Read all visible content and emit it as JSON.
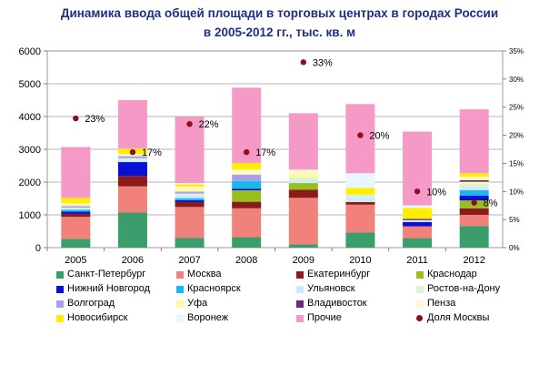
{
  "title_line1": "Динамика ввода общей площади в торговых центрах в городах России",
  "title_line2": "в 2005-2012 гг., тыс. кв. м",
  "chart_data": {
    "type": "bar",
    "stacked": true,
    "categories": [
      "2005",
      "2006",
      "2007",
      "2008",
      "2009",
      "2010",
      "2011",
      "2012"
    ],
    "ylim": [
      0,
      6000
    ],
    "y_ticks": [
      "0",
      "1000",
      "2000",
      "3000",
      "4000",
      "5000",
      "6000"
    ],
    "y2lim": [
      0,
      35
    ],
    "y2_ticks": [
      "0%",
      "5%",
      "10%",
      "15%",
      "20%",
      "25%",
      "30%",
      "35%"
    ],
    "grid": true,
    "legend_position": "bottom",
    "series": [
      {
        "name": "Санкт-Петербург",
        "color": "#3a9d6b",
        "values": [
          270,
          1070,
          300,
          320,
          100,
          460,
          290,
          660
        ]
      },
      {
        "name": "Москва",
        "color": "#f0827b",
        "values": [
          670,
          800,
          940,
          880,
          1420,
          850,
          360,
          340
        ]
      },
      {
        "name": "Екатеринбург",
        "color": "#8b1a1a",
        "values": [
          90,
          320,
          150,
          200,
          250,
          80,
          0,
          200
        ]
      },
      {
        "name": "Краснодар",
        "color": "#99bf1c",
        "values": [
          0,
          0,
          0,
          350,
          200,
          0,
          0,
          240
        ]
      },
      {
        "name": "Нижний Новгород",
        "color": "#0a0fd6",
        "values": [
          70,
          420,
          60,
          50,
          0,
          0,
          130,
          150
        ]
      },
      {
        "name": "Красноярск",
        "color": "#19b9f0",
        "values": [
          60,
          0,
          60,
          230,
          0,
          0,
          0,
          160
        ]
      },
      {
        "name": "Ульяновск",
        "color": "#cfe9fa",
        "values": [
          30,
          50,
          80,
          0,
          80,
          110,
          60,
          80
        ]
      },
      {
        "name": "Ростов-на-Дону",
        "color": "#d9f2de",
        "values": [
          30,
          70,
          60,
          0,
          80,
          120,
          0,
          120
        ]
      },
      {
        "name": "Волгоград",
        "color": "#a8a0e6",
        "values": [
          50,
          60,
          60,
          200,
          0,
          0,
          0,
          0
        ]
      },
      {
        "name": "Уфа",
        "color": "#fffba0",
        "values": [
          40,
          0,
          70,
          0,
          140,
          0,
          0,
          60
        ]
      },
      {
        "name": "Владивосток",
        "color": "#6a2a80",
        "values": [
          0,
          0,
          0,
          0,
          0,
          0,
          40,
          50
        ]
      },
      {
        "name": "Пенза",
        "color": "#fff8cf",
        "values": [
          40,
          70,
          80,
          150,
          110,
          0,
          0,
          100
        ]
      },
      {
        "name": "Новосибирск",
        "color": "#ffee00",
        "values": [
          170,
          160,
          70,
          200,
          0,
          200,
          330,
          110
        ]
      },
      {
        "name": "Воронеж",
        "color": "#e6f7ff",
        "values": [
          0,
          0,
          40,
          0,
          0,
          450,
          80,
          0
        ]
      },
      {
        "name": "Прочие",
        "color": "#f599c6",
        "values": [
          1550,
          1480,
          2020,
          2300,
          1720,
          2110,
          2250,
          1950
        ]
      }
    ],
    "line_series": {
      "name": "Доля Москвы",
      "color": "#8b0f1f",
      "axis": "secondary",
      "values": [
        23,
        17,
        22,
        17,
        33,
        20,
        10,
        8
      ],
      "labels": [
        "23%",
        "17%",
        "22%",
        "17%",
        "33%",
        "20%",
        "10%",
        "8%"
      ]
    }
  },
  "legend": [
    {
      "label": "Санкт-Петербург",
      "color": "#3a9d6b",
      "kind": "box"
    },
    {
      "label": "Москва",
      "color": "#f0827b",
      "kind": "box"
    },
    {
      "label": "Екатеринбург",
      "color": "#8b1a1a",
      "kind": "box"
    },
    {
      "label": "Краснодар",
      "color": "#99bf1c",
      "kind": "box"
    },
    {
      "label": "Нижний Новгород",
      "color": "#0a0fd6",
      "kind": "box"
    },
    {
      "label": "Красноярск",
      "color": "#19b9f0",
      "kind": "box"
    },
    {
      "label": "Ульяновск",
      "color": "#cfe9fa",
      "kind": "box"
    },
    {
      "label": "Ростов-на-Дону",
      "color": "#d9f2de",
      "kind": "box"
    },
    {
      "label": "Волгоград",
      "color": "#a8a0e6",
      "kind": "box"
    },
    {
      "label": "Уфа",
      "color": "#fffba0",
      "kind": "box"
    },
    {
      "label": "Владивосток",
      "color": "#6a2a80",
      "kind": "box"
    },
    {
      "label": "Пенза",
      "color": "#fff8cf",
      "kind": "box"
    },
    {
      "label": "Новосибирск",
      "color": "#ffee00",
      "kind": "box"
    },
    {
      "label": "Воронеж",
      "color": "#e6f7ff",
      "kind": "box"
    },
    {
      "label": "Прочие",
      "color": "#f599c6",
      "kind": "box"
    },
    {
      "label": "Доля Москвы",
      "color": "#8b0f1f",
      "kind": "dot"
    }
  ]
}
